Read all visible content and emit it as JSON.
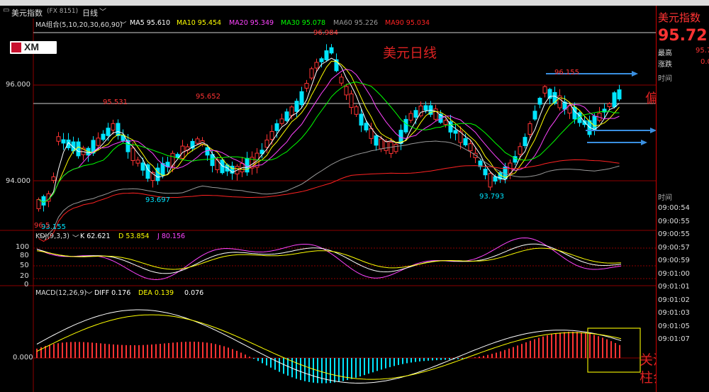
{
  "window": {
    "title": "美元指数",
    "code": "(FX 8151)",
    "period": "日线",
    "chevron": "﹀"
  },
  "watermark": {
    "logo_text": "XM"
  },
  "price_axis": [
    "96.000",
    "94.000"
  ],
  "ma_legend": {
    "group": "MA组合(5,10,20,30,60,90)",
    "items": [
      {
        "label": "MA5 95.610",
        "color": "#ffffff"
      },
      {
        "label": "MA10 95.454",
        "color": "#ffff00"
      },
      {
        "label": "MA20 95.349",
        "color": "#ff44ff"
      },
      {
        "label": "MA30 95.078",
        "color": "#00ff00"
      },
      {
        "label": "MA60 95.226",
        "color": "#999999"
      },
      {
        "label": "MA90 95.034",
        "color": "#ff2222"
      }
    ]
  },
  "price_labels": [
    "96.984",
    "95.531",
    "95.652",
    "93.697",
    "93.155",
    "96.155",
    "93.793",
    "96.5"
  ],
  "kdj_legend": {
    "name": "KDJ(9,3,3)",
    "k": "K 62.621",
    "d": "D 53.854",
    "j": "J 80.156",
    "axis": [
      "100",
      "80",
      "50",
      "20",
      "0"
    ]
  },
  "macd_legend": {
    "name": "MACD(12,26,9)",
    "diff": "DIFF 0.176",
    "dea": "DEA 0.139",
    "macd": "0.076",
    "axis": [
      "0.000"
    ]
  },
  "annotations": {
    "title": "美元日线",
    "range": "偏震荡",
    "note_line1": "关注红线",
    "note_line2": "柱会否放"
  },
  "right_panel": {
    "title": "美元指数",
    "price": "95.72",
    "high_label": "最高",
    "high_value": "95.7",
    "change_label": "涨跌",
    "change_value": "0.0",
    "time_label_1": "时间",
    "time_label_2": "时间",
    "times": [
      "09:00:54",
      "09:00:55",
      "09:00:55",
      "09:00:57",
      "09:00:59",
      "09:01:00",
      "09:01:01",
      "09:01:02",
      "09:01:03",
      "09:01:05",
      "09:01:07"
    ]
  },
  "colors": {
    "up": "#ff3333",
    "down": "#00e5ff",
    "grid": "#8b0000",
    "accent_arrow": "#3a8fe0"
  }
}
